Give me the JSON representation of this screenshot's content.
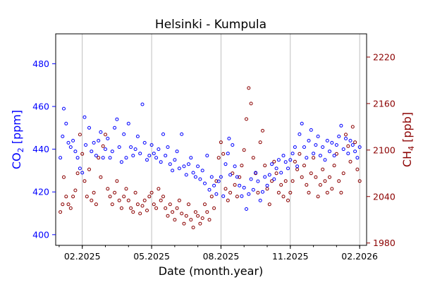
{
  "colors": {
    "co2": "#0000ff",
    "ch4": "#8b0000",
    "axis": "#000000",
    "grid": "#b0b0b0"
  },
  "chart_data": {
    "type": "scatter",
    "title": "Helsinki - Kumpula",
    "xlabel": "Date (month.year)",
    "ylabel_left": {
      "base": "CO",
      "sub": "2",
      "rest": " [ppm]"
    },
    "ylabel_right": {
      "base": "CH",
      "sub": "4",
      "rest": " [ppb]"
    },
    "x_range_months": [
      -0.15,
      13.3
    ],
    "x_ticks": [
      {
        "label": "02.2025",
        "month": 1
      },
      {
        "label": "05.2025",
        "month": 4
      },
      {
        "label": "08.2025",
        "month": 7
      },
      {
        "label": "11.2025",
        "month": 10
      },
      {
        "label": "02.2026",
        "month": 13
      }
    ],
    "x_grid": true,
    "y_left_range": [
      395,
      494
    ],
    "y_left_ticks": [
      "400",
      "420",
      "440",
      "460",
      "480"
    ],
    "y_right_range": [
      1977,
      2250
    ],
    "y_right_ticks": [
      "1980",
      "2040",
      "2100",
      "2160",
      "2220"
    ],
    "series": [
      {
        "name": "CO2",
        "axis": "left",
        "points": [
          [
            0.05,
            436
          ],
          [
            0.15,
            446
          ],
          [
            0.2,
            459
          ],
          [
            0.3,
            452
          ],
          [
            0.4,
            443
          ],
          [
            0.5,
            441
          ],
          [
            0.6,
            444
          ],
          [
            0.7,
            439
          ],
          [
            0.8,
            436
          ],
          [
            0.9,
            431
          ],
          [
            1.0,
            429
          ],
          [
            1.1,
            455
          ],
          [
            1.15,
            442
          ],
          [
            1.3,
            450
          ],
          [
            1.4,
            439
          ],
          [
            1.5,
            443
          ],
          [
            1.6,
            437
          ],
          [
            1.7,
            444
          ],
          [
            1.8,
            448
          ],
          [
            1.9,
            436
          ],
          [
            2.0,
            440
          ],
          [
            2.1,
            445
          ],
          [
            2.2,
            436
          ],
          [
            2.3,
            439
          ],
          [
            2.4,
            450
          ],
          [
            2.5,
            454
          ],
          [
            2.6,
            441
          ],
          [
            2.7,
            434
          ],
          [
            2.8,
            447
          ],
          [
            2.9,
            436
          ],
          [
            3.0,
            452
          ],
          [
            3.1,
            441
          ],
          [
            3.2,
            437
          ],
          [
            3.3,
            440
          ],
          [
            3.4,
            446
          ],
          [
            3.5,
            438
          ],
          [
            3.6,
            461
          ],
          [
            3.7,
            443
          ],
          [
            3.8,
            435
          ],
          [
            3.9,
            437
          ],
          [
            4.0,
            442
          ],
          [
            4.1,
            438
          ],
          [
            4.2,
            436
          ],
          [
            4.3,
            440
          ],
          [
            4.4,
            434
          ],
          [
            4.5,
            447
          ],
          [
            4.6,
            437
          ],
          [
            4.7,
            441
          ],
          [
            4.8,
            433
          ],
          [
            4.9,
            430
          ],
          [
            5.0,
            435
          ],
          [
            5.1,
            439
          ],
          [
            5.2,
            431
          ],
          [
            5.3,
            447
          ],
          [
            5.4,
            432
          ],
          [
            5.5,
            428
          ],
          [
            5.6,
            433
          ],
          [
            5.7,
            436
          ],
          [
            5.8,
            429
          ],
          [
            5.9,
            427
          ],
          [
            6.0,
            432
          ],
          [
            6.1,
            426
          ],
          [
            6.2,
            430
          ],
          [
            6.3,
            424
          ],
          [
            6.4,
            437
          ],
          [
            6.5,
            421
          ],
          [
            6.6,
            427
          ],
          [
            6.7,
            423
          ],
          [
            6.8,
            419
          ],
          [
            6.9,
            425
          ],
          [
            7.0,
            427
          ],
          [
            7.1,
            418
          ],
          [
            7.2,
            433
          ],
          [
            7.3,
            438
          ],
          [
            7.35,
            445
          ],
          [
            7.4,
            428
          ],
          [
            7.5,
            442
          ],
          [
            7.6,
            432
          ],
          [
            7.7,
            427
          ],
          [
            7.8,
            423
          ],
          [
            7.9,
            418
          ],
          [
            8.0,
            422
          ],
          [
            8.1,
            412
          ],
          [
            8.2,
            419
          ],
          [
            8.3,
            426
          ],
          [
            8.4,
            421
          ],
          [
            8.5,
            429
          ],
          [
            8.6,
            425
          ],
          [
            8.7,
            416
          ],
          [
            8.8,
            420
          ],
          [
            8.9,
            427
          ],
          [
            9.0,
            423
          ],
          [
            9.1,
            428
          ],
          [
            9.2,
            433
          ],
          [
            9.3,
            426
          ],
          [
            9.4,
            431
          ],
          [
            9.5,
            435
          ],
          [
            9.6,
            429
          ],
          [
            9.7,
            437
          ],
          [
            9.8,
            434
          ],
          [
            9.9,
            431
          ],
          [
            10.0,
            435
          ],
          [
            10.1,
            438
          ],
          [
            10.2,
            441
          ],
          [
            10.3,
            432
          ],
          [
            10.4,
            447
          ],
          [
            10.5,
            452
          ],
          [
            10.6,
            441
          ],
          [
            10.7,
            436
          ],
          [
            10.8,
            444
          ],
          [
            10.9,
            449
          ],
          [
            11.0,
            438
          ],
          [
            11.1,
            442
          ],
          [
            11.2,
            446
          ],
          [
            11.3,
            437
          ],
          [
            11.4,
            441
          ],
          [
            11.5,
            435
          ],
          [
            11.6,
            444
          ],
          [
            11.7,
            439
          ],
          [
            11.8,
            443
          ],
          [
            11.9,
            437
          ],
          [
            12.0,
            442
          ],
          [
            12.1,
            446
          ],
          [
            12.2,
            451
          ],
          [
            12.3,
            440
          ],
          [
            12.4,
            445
          ],
          [
            12.5,
            438
          ],
          [
            12.6,
            444
          ],
          [
            12.7,
            442
          ],
          [
            12.8,
            439
          ],
          [
            12.9,
            436
          ],
          [
            13.0,
            441
          ]
        ]
      },
      {
        "name": "CH4",
        "axis": "right",
        "points": [
          [
            0.05,
            2020
          ],
          [
            0.15,
            2030
          ],
          [
            0.2,
            2065
          ],
          [
            0.3,
            2040
          ],
          [
            0.4,
            2030
          ],
          [
            0.5,
            2025
          ],
          [
            0.6,
            2040
          ],
          [
            0.7,
            2048
          ],
          [
            0.8,
            2070
          ],
          [
            0.9,
            2120
          ],
          [
            1.0,
            2095
          ],
          [
            1.1,
            2060
          ],
          [
            1.2,
            2040
          ],
          [
            1.3,
            2075
          ],
          [
            1.4,
            2035
          ],
          [
            1.5,
            2045
          ],
          [
            1.6,
            2030
          ],
          [
            1.7,
            2090
          ],
          [
            1.8,
            2065
          ],
          [
            1.9,
            2105
          ],
          [
            2.0,
            2120
          ],
          [
            2.1,
            2050
          ],
          [
            2.2,
            2040
          ],
          [
            2.3,
            2030
          ],
          [
            2.4,
            2045
          ],
          [
            2.5,
            2060
          ],
          [
            2.6,
            2035
          ],
          [
            2.7,
            2025
          ],
          [
            2.8,
            2040
          ],
          [
            2.9,
            2050
          ],
          [
            3.0,
            2035
          ],
          [
            3.1,
            2025
          ],
          [
            3.2,
            2020
          ],
          [
            3.3,
            2045
          ],
          [
            3.4,
            2030
          ],
          [
            3.5,
            2018
          ],
          [
            3.6,
            2028
          ],
          [
            3.7,
            2035
          ],
          [
            3.8,
            2022
          ],
          [
            3.9,
            2040
          ],
          [
            4.0,
            2045
          ],
          [
            4.1,
            2030
          ],
          [
            4.2,
            2025
          ],
          [
            4.3,
            2050
          ],
          [
            4.4,
            2035
          ],
          [
            4.5,
            2040
          ],
          [
            4.6,
            2025
          ],
          [
            4.7,
            2015
          ],
          [
            4.8,
            2030
          ],
          [
            4.9,
            2020
          ],
          [
            5.0,
            2010
          ],
          [
            5.1,
            2025
          ],
          [
            5.2,
            2035
          ],
          [
            5.3,
            2018
          ],
          [
            5.4,
            2005
          ],
          [
            5.5,
            2015
          ],
          [
            5.6,
            2030
          ],
          [
            5.7,
            2010
          ],
          [
            5.8,
            2000
          ],
          [
            5.9,
            2020
          ],
          [
            6.0,
            2015
          ],
          [
            6.1,
            2005
          ],
          [
            6.2,
            2012
          ],
          [
            6.3,
            2030
          ],
          [
            6.4,
            2020
          ],
          [
            6.5,
            2010
          ],
          [
            6.6,
            2040
          ],
          [
            6.7,
            2025
          ],
          [
            6.8,
            2060
          ],
          [
            6.9,
            2090
          ],
          [
            7.0,
            2110
          ],
          [
            7.1,
            2095
          ],
          [
            7.2,
            2050
          ],
          [
            7.3,
            2035
          ],
          [
            7.4,
            2045
          ],
          [
            7.5,
            2070
          ],
          [
            7.6,
            2055
          ],
          [
            7.7,
            2040
          ],
          [
            7.8,
            2065
          ],
          [
            7.9,
            2080
          ],
          [
            8.0,
            2100
          ],
          [
            8.1,
            2140
          ],
          [
            8.2,
            2180
          ],
          [
            8.3,
            2160
          ],
          [
            8.4,
            2090
          ],
          [
            8.5,
            2070
          ],
          [
            8.6,
            2045
          ],
          [
            8.7,
            2110
          ],
          [
            8.8,
            2125
          ],
          [
            8.9,
            2080
          ],
          [
            9.0,
            2050
          ],
          [
            9.1,
            2030
          ],
          [
            9.2,
            2060
          ],
          [
            9.3,
            2085
          ],
          [
            9.4,
            2070
          ],
          [
            9.5,
            2045
          ],
          [
            9.6,
            2055
          ],
          [
            9.7,
            2040
          ],
          [
            9.8,
            2060
          ],
          [
            9.9,
            2035
          ],
          [
            10.0,
            2045
          ],
          [
            10.1,
            2060
          ],
          [
            10.2,
            2085
          ],
          [
            10.3,
            2075
          ],
          [
            10.4,
            2095
          ],
          [
            10.5,
            2065
          ],
          [
            10.6,
            2080
          ],
          [
            10.7,
            2055
          ],
          [
            10.8,
            2045
          ],
          [
            10.9,
            2070
          ],
          [
            11.0,
            2090
          ],
          [
            11.1,
            2065
          ],
          [
            11.2,
            2040
          ],
          [
            11.3,
            2055
          ],
          [
            11.4,
            2075
          ],
          [
            11.5,
            2060
          ],
          [
            11.6,
            2045
          ],
          [
            11.7,
            2065
          ],
          [
            11.8,
            2050
          ],
          [
            11.9,
            2080
          ],
          [
            12.0,
            2095
          ],
          [
            12.1,
            2060
          ],
          [
            12.2,
            2045
          ],
          [
            12.3,
            2070
          ],
          [
            12.4,
            2120
          ],
          [
            12.5,
            2105
          ],
          [
            12.6,
            2085
          ],
          [
            12.7,
            2130
          ],
          [
            12.8,
            2110
          ],
          [
            12.9,
            2075
          ],
          [
            13.0,
            2060
          ]
        ]
      }
    ]
  }
}
